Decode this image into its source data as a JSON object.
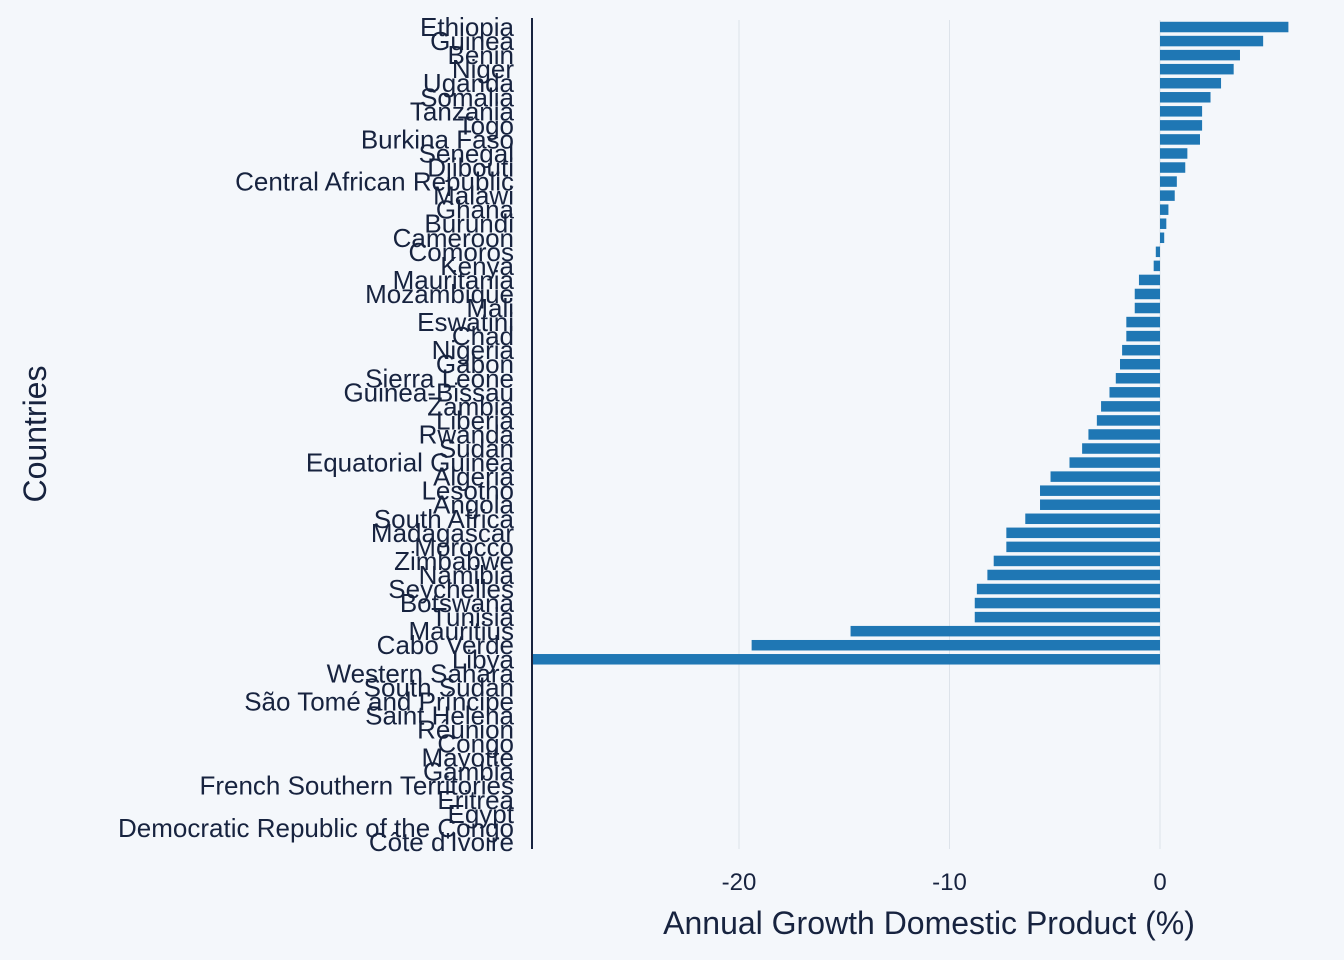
{
  "chart_data": {
    "type": "bar",
    "orientation": "horizontal",
    "xlabel": "Annual Growth Domestic Product (%)",
    "ylabel": "Countries",
    "xlim": [
      -29.7,
      6.5
    ],
    "xticks": [
      -20,
      -10,
      0
    ],
    "grid": "vertical",
    "legend": "none",
    "colors": {
      "bar": "#1f77b4",
      "text": "#17233f",
      "background": "#f4f7fb",
      "grid": "#dde3ea",
      "axis": "#17233f"
    },
    "categories": [
      "Ethiopia",
      "Guinea",
      "Benin",
      "Niger",
      "Uganda",
      "Somalia",
      "Tanzania",
      "Togo",
      "Burkina Faso",
      "Senegal",
      "Djibouti",
      "Central African Republic",
      "Malawi",
      "Ghana",
      "Burundi",
      "Cameroon",
      "Comoros",
      "Kenya",
      "Mauritania",
      "Mozambique",
      "Mali",
      "Eswatini",
      "Chad",
      "Nigeria",
      "Gabon",
      "Sierra Leone",
      "Guinea-Bissau",
      "Zambia",
      "Liberia",
      "Rwanda",
      "Sudan",
      "Equatorial Guinea",
      "Algeria",
      "Lesotho",
      "Angola",
      "South Africa",
      "Madagascar",
      "Morocco",
      "Zimbabwe",
      "Namibia",
      "Seychelles",
      "Botswana",
      "Tunisia",
      "Mauritius",
      "Cabo Verde",
      "Libya",
      "Western Sahara",
      "South Sudan",
      "São Tomé and Príncipe",
      "Saint Helena",
      "Réunion",
      "Congo",
      "Mayotte",
      "Gambia",
      "French Southern Territories",
      "Eritrea",
      "Egypt",
      "Democratic Republic of the Congo",
      "Côte d'Ivoire"
    ],
    "values": [
      6.1,
      4.9,
      3.8,
      3.5,
      2.9,
      2.4,
      2.0,
      2.0,
      1.9,
      1.3,
      1.2,
      0.8,
      0.7,
      0.4,
      0.3,
      0.2,
      -0.2,
      -0.3,
      -1.0,
      -1.2,
      -1.2,
      -1.6,
      -1.6,
      -1.8,
      -1.9,
      -2.1,
      -2.4,
      -2.8,
      -3.0,
      -3.4,
      -3.7,
      -4.3,
      -5.2,
      -5.7,
      -5.7,
      -6.4,
      -7.3,
      -7.3,
      -7.9,
      -8.2,
      -8.7,
      -8.8,
      -8.8,
      -14.7,
      -19.4,
      -30.0,
      null,
      null,
      null,
      null,
      null,
      null,
      null,
      null,
      null,
      null,
      null,
      null,
      null
    ]
  }
}
